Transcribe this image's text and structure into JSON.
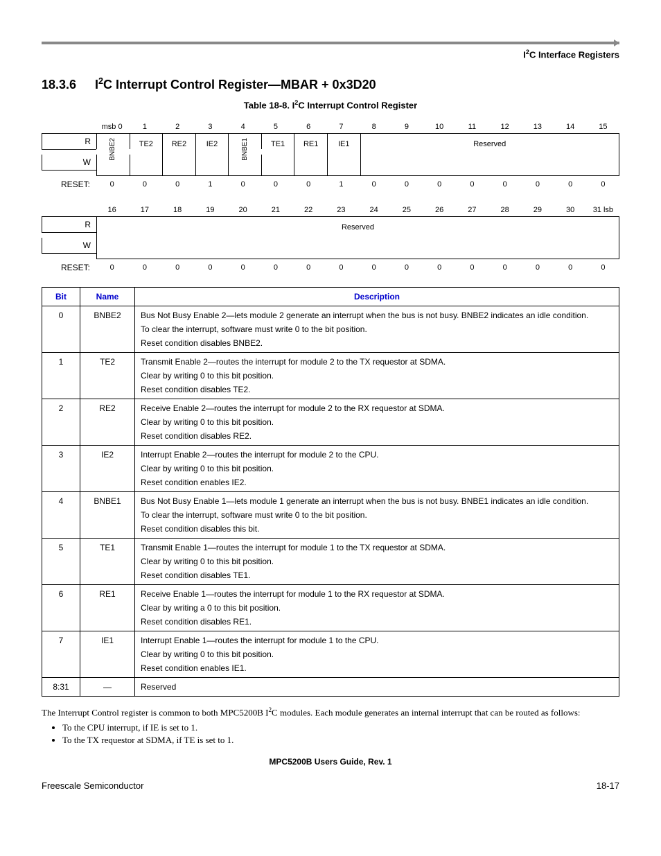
{
  "header": {
    "corner_title_prefix": "I",
    "corner_title_sup": "2",
    "corner_title_suffix": "C Interface Registers"
  },
  "section": {
    "number": "18.3.6",
    "title_prefix": "I",
    "title_sup": "2",
    "title_suffix": "C Interrupt Control Register—MBAR + 0x3D20"
  },
  "caption": {
    "prefix": "Table 18-8. I",
    "sup": "2",
    "suffix": "C Interrupt Control Register"
  },
  "register": {
    "row_labels": {
      "r": "R",
      "w": "W",
      "reset": "RESET:"
    },
    "top": {
      "bit_numbers_prefix": "msb 0",
      "bit_numbers": [
        "1",
        "2",
        "3",
        "4",
        "5",
        "6",
        "7",
        "8",
        "9",
        "10",
        "11",
        "12",
        "13",
        "14",
        "15"
      ],
      "fields": [
        "BNBE2",
        "TE2",
        "RE2",
        "IE2",
        "BNBE1",
        "TE1",
        "RE1",
        "IE1"
      ],
      "reserved_label": "Reserved",
      "reset": [
        "0",
        "0",
        "0",
        "1",
        "0",
        "0",
        "0",
        "1",
        "0",
        "0",
        "0",
        "0",
        "0",
        "0",
        "0",
        "0"
      ]
    },
    "bottom": {
      "bit_numbers": [
        "16",
        "17",
        "18",
        "19",
        "20",
        "21",
        "22",
        "23",
        "24",
        "25",
        "26",
        "27",
        "28",
        "29",
        "30",
        "31 lsb"
      ],
      "reserved_label": "Reserved",
      "reset": [
        "0",
        "0",
        "0",
        "0",
        "0",
        "0",
        "0",
        "0",
        "0",
        "0",
        "0",
        "0",
        "0",
        "0",
        "0",
        "0"
      ]
    }
  },
  "desc_table": {
    "headers": {
      "bit": "Bit",
      "name": "Name",
      "description": "Description"
    },
    "rows": [
      {
        "bit": "0",
        "name": "BNBE2",
        "desc": [
          "Bus Not Busy Enable 2—lets module 2 generate an interrupt when the bus is not busy. BNBE2 indicates an idle condition.",
          "To clear the interrupt, software must write 0 to the bit position.",
          "Reset condition disables BNBE2."
        ]
      },
      {
        "bit": "1",
        "name": "TE2",
        "desc": [
          "Transmit Enable 2—routes the interrupt for module 2 to the TX requestor at SDMA.",
          "Clear by writing 0 to this bit position.",
          "Reset condition disables TE2."
        ]
      },
      {
        "bit": "2",
        "name": "RE2",
        "desc": [
          "Receive Enable 2—routes the interrupt for module 2 to the RX requestor at SDMA.",
          "Clear by writing 0 to this bit position.",
          "Reset condition disables RE2."
        ]
      },
      {
        "bit": "3",
        "name": "IE2",
        "desc": [
          "Interrupt Enable 2—routes the interrupt for module 2 to the CPU.",
          "Clear by writing 0 to this bit position.",
          "Reset condition enables IE2."
        ]
      },
      {
        "bit": "4",
        "name": "BNBE1",
        "desc": [
          "Bus Not Busy Enable 1—lets module 1 generate an interrupt when the bus is not busy. BNBE1 indicates an idle condition.",
          "To clear the interrupt, software must write 0 to the bit position.",
          "Reset condition disables this bit."
        ]
      },
      {
        "bit": "5",
        "name": "TE1",
        "desc": [
          "Transmit Enable 1—routes the interrupt for module 1 to the TX requestor at SDMA.",
          "Clear by writing 0 to this bit position.",
          "Reset condition disables TE1."
        ]
      },
      {
        "bit": "6",
        "name": "RE1",
        "desc": [
          "Receive Enable 1—routes the interrupt for module 1 to the RX requestor at SDMA.",
          "Clear by writing a 0 to this bit position.",
          "Reset condition disables RE1."
        ]
      },
      {
        "bit": "7",
        "name": "IE1",
        "desc": [
          "Interrupt Enable 1—routes the interrupt for module 1 to the CPU.",
          "Clear by writing 0 to this bit position.",
          "Reset condition enables IE1."
        ]
      },
      {
        "bit": "8:31",
        "name": "—",
        "desc": [
          "Reserved"
        ]
      }
    ]
  },
  "body_text": {
    "para_prefix": "The Interrupt Control register is common to both MPC5200B I",
    "para_sup": "2",
    "para_suffix": "C modules. Each module generates an internal interrupt that can be routed as follows:",
    "bullets": [
      "To the CPU interrupt, if IE is set to 1.",
      "To the TX requestor at SDMA, if TE is set to 1."
    ]
  },
  "footer": {
    "center": "MPC5200B Users Guide, Rev. 1",
    "left": "Freescale Semiconductor",
    "right": "18-17"
  }
}
